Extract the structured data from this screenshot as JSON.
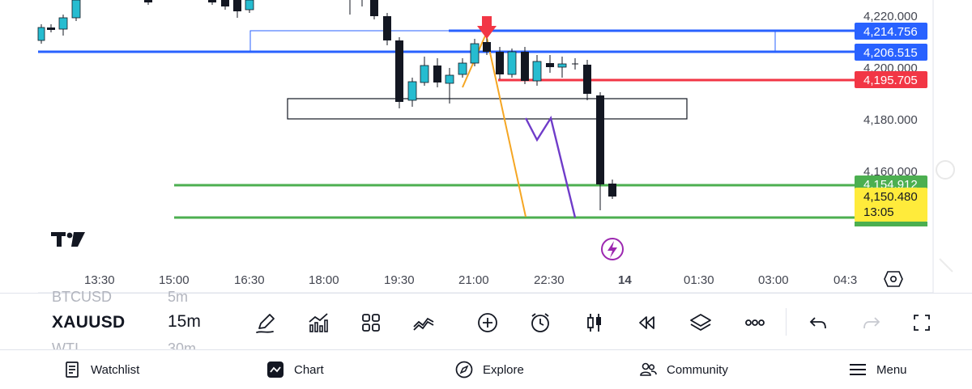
{
  "chart": {
    "logo": "TV",
    "time_labels": [
      "13:30",
      "15:00",
      "16:30",
      "18:00",
      "19:30",
      "21:00",
      "22:30",
      "14",
      "01:30",
      "03:00",
      "04:3"
    ],
    "price_labels": [
      "4,220.000",
      "4,200.000",
      "4,180.000",
      "4,160.000"
    ],
    "price_tags": [
      {
        "value": "4,214.756",
        "color": "#2962ff"
      },
      {
        "value": "4,206.515",
        "color": "#2962ff"
      },
      {
        "value": "4,195.705",
        "color": "#f23645"
      },
      {
        "value": "4,154.912",
        "color": "#4caf50"
      },
      {
        "value": "4,150.480",
        "color": "#ffeb3b"
      },
      {
        "value": "13:05",
        "color": "#ffeb3b"
      }
    ],
    "settings_icon": "gear-hexagon-icon",
    "lightning_icon": "lightning-icon"
  },
  "chart_data": {
    "type": "candlestick",
    "symbol": "XAUUSD",
    "interval": "15m",
    "y_ticks": [
      4220,
      4200,
      4180,
      4160
    ],
    "horizontal_levels": [
      {
        "price": 4214.756,
        "color": "#2962ff"
      },
      {
        "price": 4206.515,
        "color": "#2962ff"
      },
      {
        "price": 4195.705,
        "color": "#f23645"
      },
      {
        "price": 4154.912,
        "color": "#4caf50"
      },
      {
        "price": 4150.48,
        "color": "#ffeb3b"
      }
    ]
  },
  "toolbar": {
    "symbol": "XAUUSD",
    "symbol_prev": "BTCUSD",
    "symbol_next": "WTI",
    "interval": "15m",
    "interval_prev": "5m",
    "interval_next": "30m",
    "icons": [
      "pencil-icon",
      "indicators-icon",
      "layouts-icon",
      "chart-type-icon",
      "add-icon",
      "alert-icon",
      "candles-icon",
      "replay-icon",
      "layers-icon",
      "more-icon",
      "undo-icon",
      "redo-icon",
      "fullscreen-icon"
    ]
  },
  "nav": {
    "watchlist": "Watchlist",
    "chart": "Chart",
    "explore": "Explore",
    "community": "Community",
    "menu": "Menu"
  }
}
